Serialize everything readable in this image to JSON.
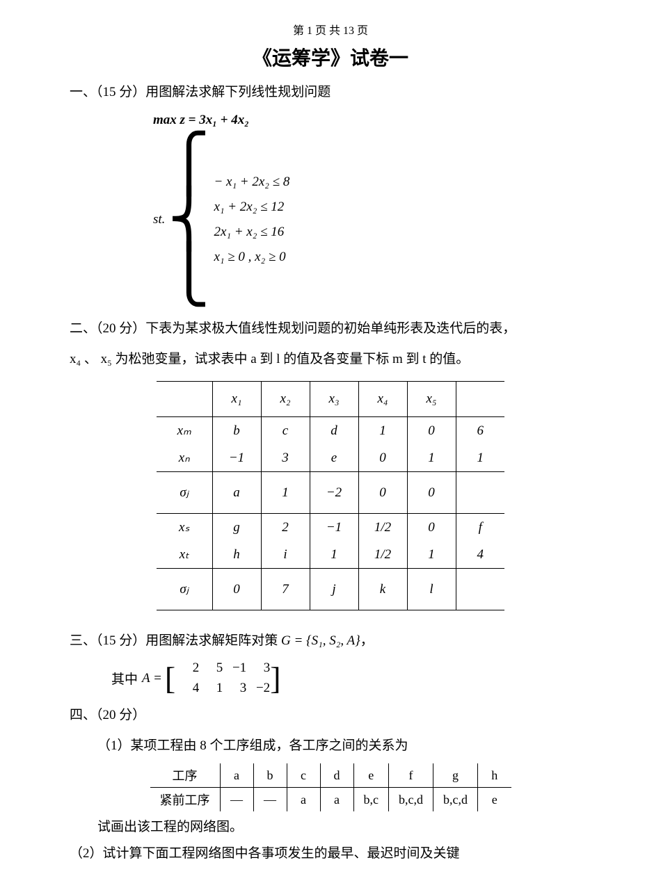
{
  "page_header": "第 1 页 共 13 页",
  "title": "《运筹学》试卷一",
  "p1": {
    "heading": "一、（15 分）用图解法求解下列线性规划问题",
    "max_line": "max  z = 3x₁ + 4x₂",
    "st": "st.",
    "c1": "− x₁ + 2x₂ ≤ 8",
    "c2": "   x₁ + 2x₂ ≤ 12",
    "c3": "2x₁ +   x₂ ≤ 16",
    "c4": "x₁ ≥ 0 , x₂ ≥ 0"
  },
  "p2": {
    "line1": "二、（20 分）下表为某求极大值线性规划问题的初始单纯形表及迭代后的表，",
    "line2_pre": "x₄ 、 x₅ 为松弛变量，试求表中 a 到 l 的值及各变量下标 m 到 t 的值。",
    "table": {
      "headers": [
        "",
        "x₁",
        "x₂",
        "x₃",
        "x₄",
        "x₅",
        ""
      ],
      "block1_row1": [
        "xₘ",
        "b",
        "c",
        "d",
        "1",
        "0",
        "6"
      ],
      "block1_row2": [
        "xₙ",
        "−1",
        "3",
        "e",
        "0",
        "1",
        "1"
      ],
      "sigma1": [
        "σⱼ",
        "a",
        "1",
        "−2",
        "0",
        "0",
        ""
      ],
      "block2_row1": [
        "xₛ",
        "g",
        "2",
        "−1",
        "1/2",
        "0",
        "f"
      ],
      "block2_row2": [
        "xₜ",
        "h",
        "i",
        "1",
        "1/2",
        "1",
        "4"
      ],
      "sigma2": [
        "σⱼ",
        "0",
        "7",
        "j",
        "k",
        "l",
        ""
      ]
    }
  },
  "p3": {
    "heading_pre": "三、（15 分）用图解法求解矩阵对策 ",
    "heading_G": "G = {S₁, S₂, A}",
    "heading_post": "，",
    "where": "其中",
    "A_eq": "A =",
    "row1": [
      "2",
      "5",
      "−1",
      "3"
    ],
    "row2": [
      "4",
      "1",
      "3",
      "−2"
    ]
  },
  "p4": {
    "heading": "四、（20 分）",
    "sub1": "（1）某项工程由 8 个工序组成，各工序之间的关系为",
    "rel_table": {
      "h": [
        "工序",
        "a",
        "b",
        "c",
        "d",
        "e",
        "f",
        "g",
        "h"
      ],
      "r": [
        "紧前工序",
        "—",
        "—",
        "a",
        "a",
        "b,c",
        "b,c,d",
        "b,c,d",
        "e"
      ]
    },
    "note": "试画出该工程的网络图。",
    "sub2": "（2）试计算下面工程网络图中各事项发生的最早、最迟时间及关键"
  }
}
